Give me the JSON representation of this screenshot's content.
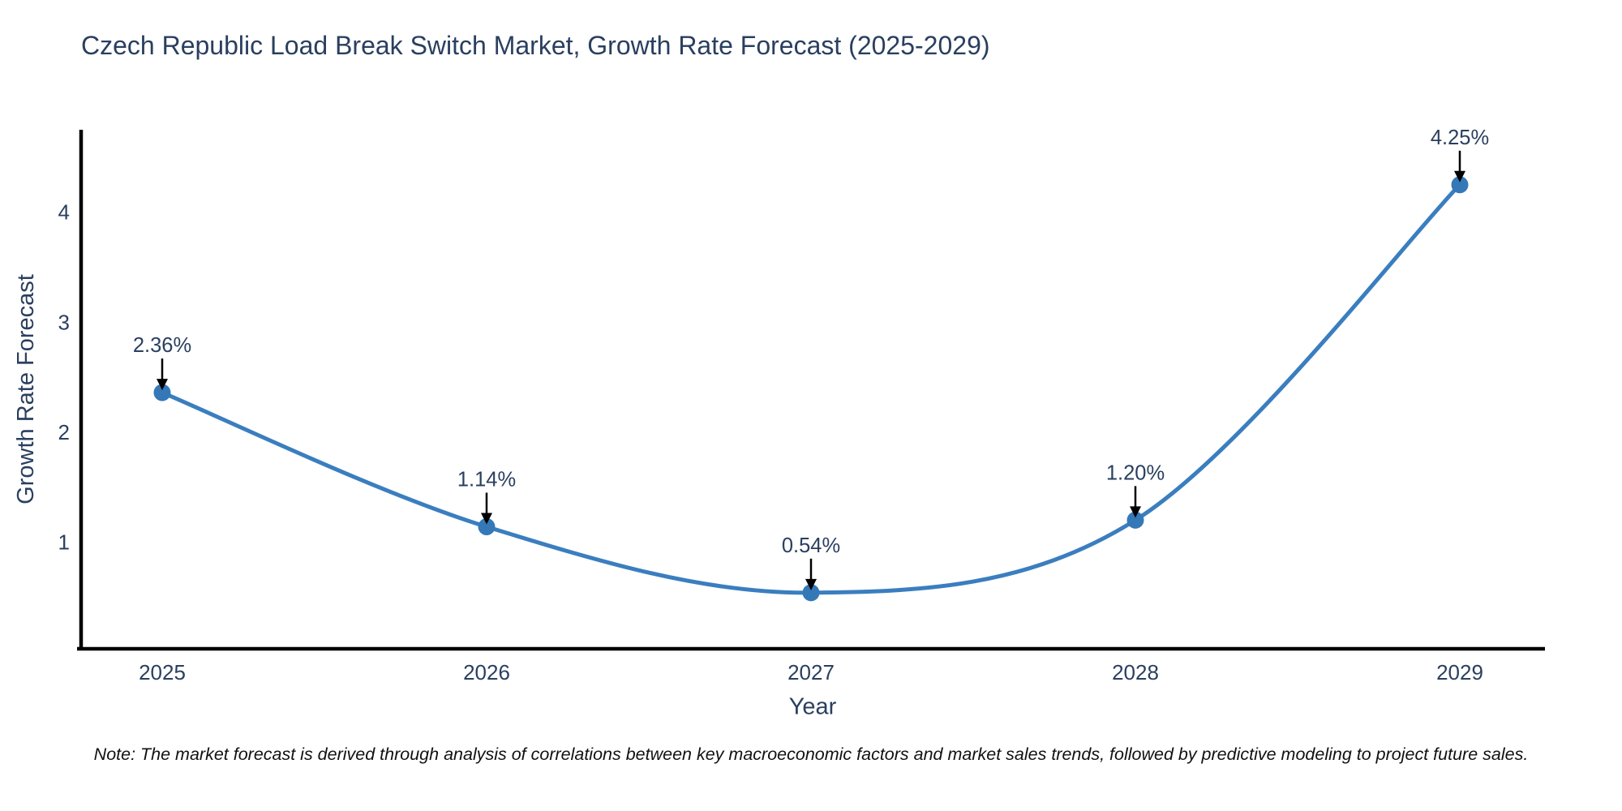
{
  "title": {
    "text": "Czech Republic Load Break Switch Market, Growth Rate Forecast (2025-2029)"
  },
  "note": {
    "text": "Note: The market forecast is derived through analysis of correlations between key macroeconomic factors and market sales trends, followed by predictive modeling to project future sales."
  },
  "chart_data": {
    "type": "line",
    "title": "Czech Republic Load Break Switch Market, Growth Rate Forecast (2025-2029)",
    "x": [
      2025,
      2026,
      2027,
      2028,
      2029
    ],
    "series": [
      {
        "name": "Growth Rate Forecast",
        "values": [
          2.36,
          1.14,
          0.54,
          1.2,
          4.25
        ]
      }
    ],
    "point_labels": [
      "2.36%",
      "1.14%",
      "0.54%",
      "1.20%",
      "4.25%"
    ],
    "xticks": [
      "2025",
      "2026",
      "2027",
      "2028",
      "2029"
    ],
    "yticks": [
      1,
      2,
      3,
      4
    ],
    "ylim": [
      0.03,
      4.75
    ],
    "xlabel": "Year",
    "ylabel": "Growth Rate Forecast",
    "line_shape": "spline",
    "grid": false,
    "legend_position": "none",
    "colors": {
      "line": "#3a7ebf",
      "marker": "#3578b7",
      "axis": "#000000",
      "text": "#2a3f5f",
      "annotation_arrow": "#000000"
    }
  }
}
